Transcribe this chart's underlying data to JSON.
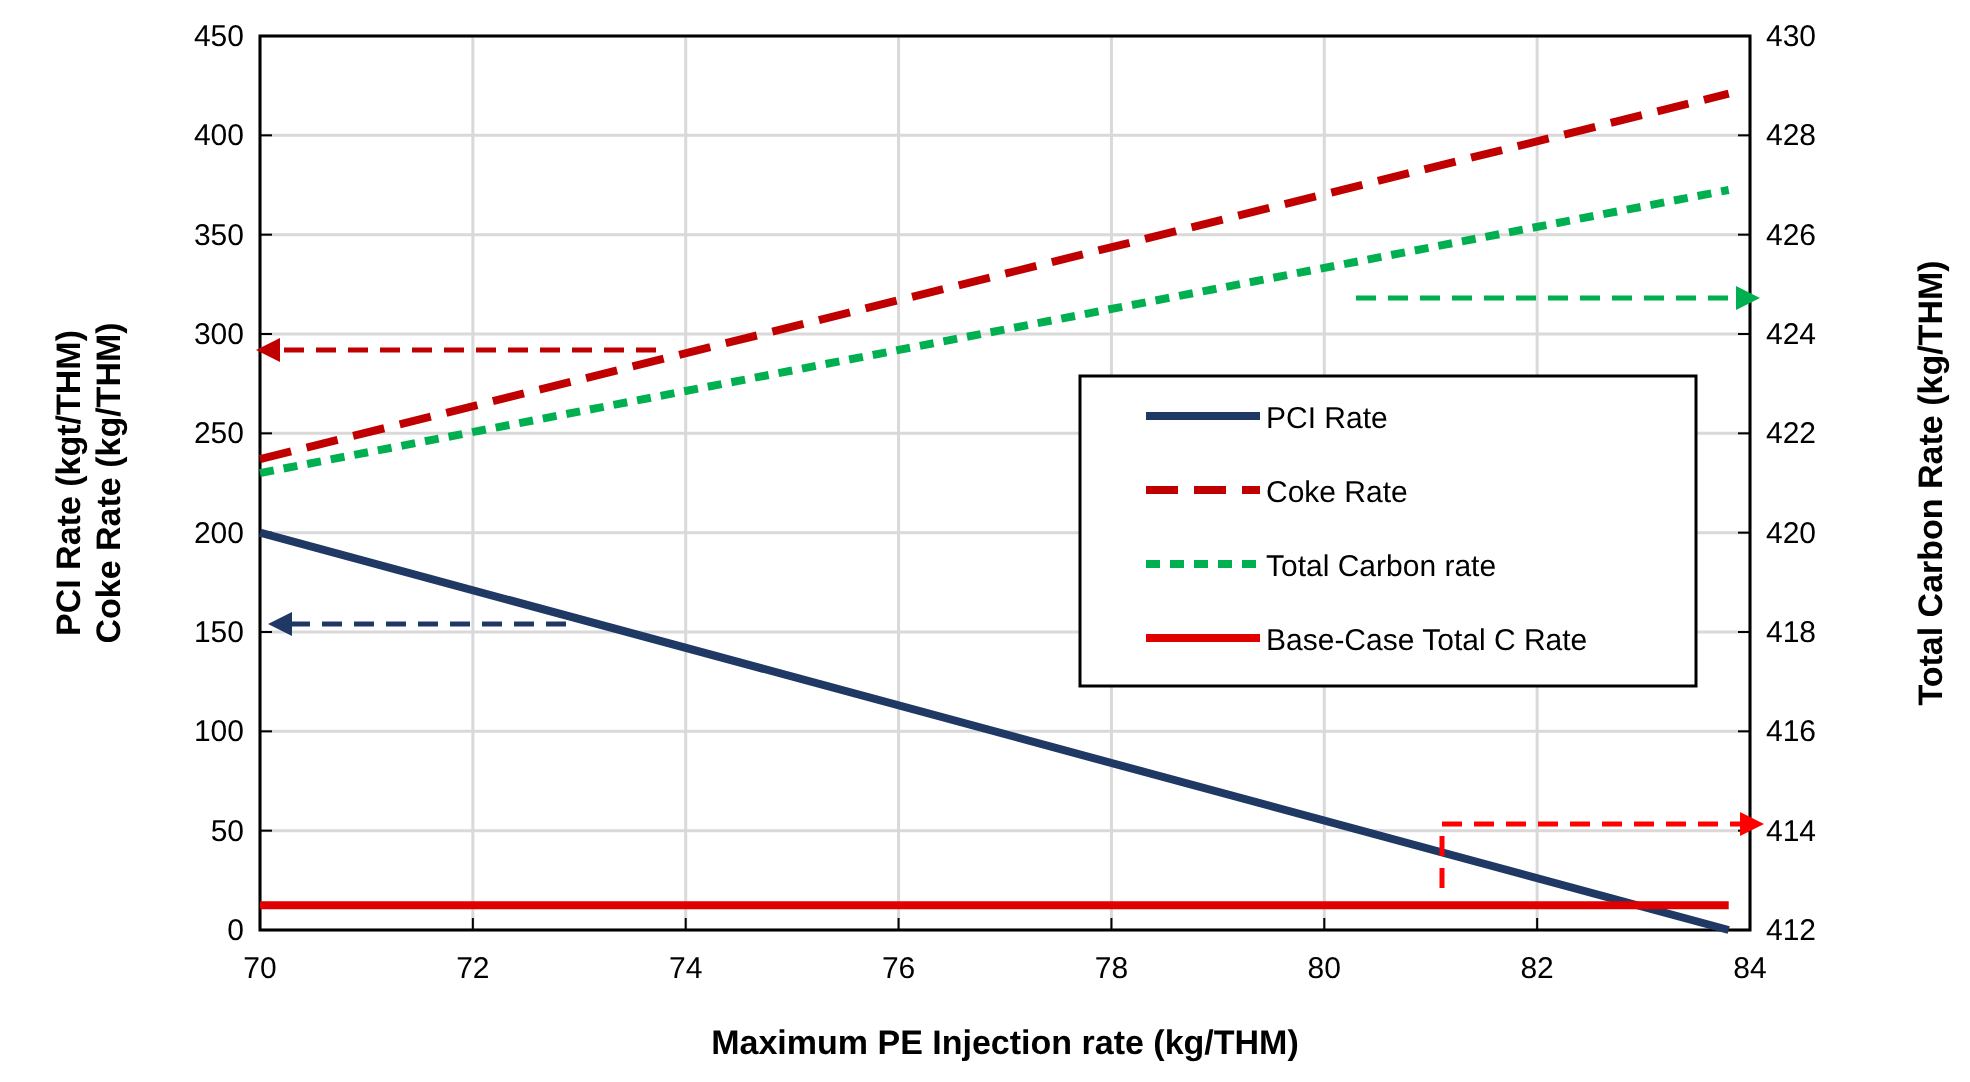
{
  "chart_data": {
    "type": "line",
    "xlabel": "Maximum PE Injection rate (kg/THM)",
    "ylabel": "PCI Rate (kgt/THM)\nCoke Rate (kg/THM)",
    "y2label": "Total Carbon Rate (kg/THM)",
    "x": [
      70,
      83.8
    ],
    "series": [
      {
        "name": "PCI Rate",
        "color": "#1f3864",
        "values": [
          200,
          0
        ],
        "line_style": "solid"
      },
      {
        "name": "Coke Rate",
        "color": "#c00000",
        "values": [
          237,
          421
        ],
        "line_style": "dashed"
      },
      {
        "name": "Total Carbon rate",
        "color": "#00b050",
        "values": [
          421.2,
          426.9
        ],
        "line_style": "dotted",
        "axis": "y2"
      },
      {
        "name": "Base-Case Total C Rate",
        "color": "#e00000",
        "values": [
          412.5,
          412.5
        ],
        "line_style": "solid",
        "axis": "y2"
      }
    ],
    "xlim": [
      70,
      84
    ],
    "xticks": [
      70,
      72,
      74,
      76,
      78,
      80,
      82,
      84
    ],
    "ylim": [
      0,
      450
    ],
    "yticks": [
      0,
      50,
      100,
      150,
      200,
      250,
      300,
      350,
      400,
      450
    ],
    "y2lim": [
      412,
      430
    ],
    "y2ticks": [
      412,
      414,
      416,
      418,
      420,
      422,
      424,
      426,
      428,
      430
    ],
    "grid": true,
    "legend": "right"
  }
}
